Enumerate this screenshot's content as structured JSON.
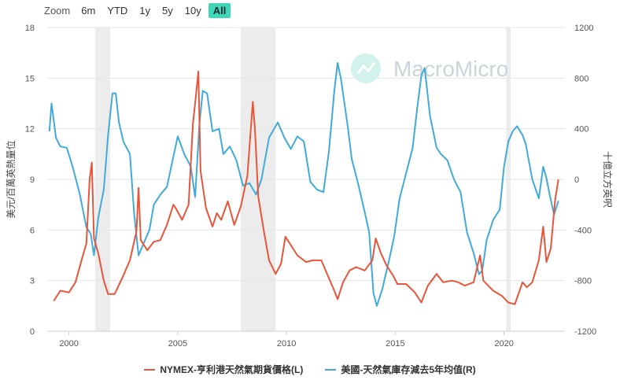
{
  "zoom": {
    "label": "Zoom",
    "buttons": [
      "6m",
      "YTD",
      "1y",
      "5y",
      "10y",
      "All"
    ],
    "active": "All"
  },
  "watermark": {
    "text": "MacroMicro",
    "icon": "macromicro-logo-icon"
  },
  "colors": {
    "red": "#e8553a",
    "blue": "#41aad9",
    "recession": "#ececec",
    "accent": "#40d6b8"
  },
  "chart_data": {
    "type": "line",
    "x_axis": {
      "ticks": [
        "2000",
        "2005",
        "2010",
        "2015",
        "2020"
      ],
      "range": [
        1999.0,
        2022.8
      ]
    },
    "y_left": {
      "label": "美元/百萬英熱量位",
      "range": [
        0,
        18
      ],
      "ticks": [
        "0",
        "3",
        "6",
        "9",
        "12",
        "15",
        "18"
      ]
    },
    "y_right": {
      "label": "十億立方英呎",
      "range": [
        -1200,
        1200
      ],
      "ticks": [
        "-1200",
        "-800",
        "-400",
        "0",
        "400",
        "800",
        "1200"
      ]
    },
    "recessions": [
      [
        2001.2,
        2001.9
      ],
      [
        2007.9,
        2009.5
      ],
      [
        2020.1,
        2020.3
      ]
    ],
    "grid": "horizontal",
    "legend_position": "bottom",
    "series": [
      {
        "name": "NYMEX-亨利港天然氣期貨價格(L)",
        "axis": "left",
        "color": "#e8553a",
        "points": [
          [
            1999.3,
            1.8
          ],
          [
            1999.6,
            2.4
          ],
          [
            2000.0,
            2.3
          ],
          [
            2000.3,
            2.9
          ],
          [
            2000.6,
            4.3
          ],
          [
            2000.8,
            5.2
          ],
          [
            2000.95,
            9.0
          ],
          [
            2001.05,
            10.0
          ],
          [
            2001.15,
            5.5
          ],
          [
            2001.35,
            4.6
          ],
          [
            2001.6,
            3.0
          ],
          [
            2001.8,
            2.2
          ],
          [
            2002.1,
            2.2
          ],
          [
            2002.5,
            3.3
          ],
          [
            2002.8,
            4.2
          ],
          [
            2003.1,
            5.9
          ],
          [
            2003.2,
            8.5
          ],
          [
            2003.3,
            5.4
          ],
          [
            2003.6,
            4.8
          ],
          [
            2003.9,
            5.3
          ],
          [
            2004.2,
            5.4
          ],
          [
            2004.5,
            6.3
          ],
          [
            2004.8,
            7.5
          ],
          [
            2004.95,
            7.2
          ],
          [
            2005.2,
            6.6
          ],
          [
            2005.5,
            7.5
          ],
          [
            2005.7,
            12.3
          ],
          [
            2005.8,
            13.5
          ],
          [
            2005.95,
            15.4
          ],
          [
            2006.05,
            9.5
          ],
          [
            2006.3,
            7.3
          ],
          [
            2006.6,
            6.2
          ],
          [
            2006.8,
            7.0
          ],
          [
            2007.0,
            6.6
          ],
          [
            2007.3,
            7.7
          ],
          [
            2007.6,
            6.3
          ],
          [
            2007.9,
            7.4
          ],
          [
            2008.2,
            9.2
          ],
          [
            2008.45,
            13.6
          ],
          [
            2008.55,
            12.0
          ],
          [
            2008.7,
            8.0
          ],
          [
            2008.95,
            6.0
          ],
          [
            2009.2,
            4.2
          ],
          [
            2009.5,
            3.4
          ],
          [
            2009.75,
            4.0
          ],
          [
            2009.95,
            5.6
          ],
          [
            2010.1,
            5.3
          ],
          [
            2010.5,
            4.5
          ],
          [
            2010.9,
            4.1
          ],
          [
            2011.2,
            4.2
          ],
          [
            2011.6,
            4.2
          ],
          [
            2011.9,
            3.3
          ],
          [
            2012.2,
            2.4
          ],
          [
            2012.35,
            1.9
          ],
          [
            2012.6,
            2.9
          ],
          [
            2012.9,
            3.6
          ],
          [
            2013.2,
            3.8
          ],
          [
            2013.6,
            3.6
          ],
          [
            2013.95,
            4.2
          ],
          [
            2014.1,
            5.5
          ],
          [
            2014.35,
            4.6
          ],
          [
            2014.6,
            3.9
          ],
          [
            2014.9,
            3.3
          ],
          [
            2015.1,
            2.8
          ],
          [
            2015.5,
            2.8
          ],
          [
            2015.9,
            2.3
          ],
          [
            2016.2,
            1.7
          ],
          [
            2016.5,
            2.7
          ],
          [
            2016.9,
            3.4
          ],
          [
            2017.2,
            2.9
          ],
          [
            2017.6,
            3.0
          ],
          [
            2017.9,
            2.9
          ],
          [
            2018.2,
            2.7
          ],
          [
            2018.6,
            2.9
          ],
          [
            2018.9,
            4.5
          ],
          [
            2019.05,
            3.0
          ],
          [
            2019.5,
            2.4
          ],
          [
            2019.9,
            2.1
          ],
          [
            2020.2,
            1.7
          ],
          [
            2020.5,
            1.6
          ],
          [
            2020.85,
            2.9
          ],
          [
            2021.05,
            2.6
          ],
          [
            2021.3,
            2.9
          ],
          [
            2021.6,
            4.2
          ],
          [
            2021.8,
            6.2
          ],
          [
            2021.95,
            4.1
          ],
          [
            2022.15,
            4.9
          ],
          [
            2022.35,
            7.8
          ],
          [
            2022.5,
            9.0
          ]
        ]
      },
      {
        "name": "美國-天然氣庫存減去5年均值(R)",
        "axis": "right",
        "color": "#41aad9",
        "points": [
          [
            1999.1,
            380
          ],
          [
            1999.2,
            600
          ],
          [
            1999.4,
            330
          ],
          [
            1999.6,
            260
          ],
          [
            1999.9,
            250
          ],
          [
            2000.2,
            80
          ],
          [
            2000.5,
            -120
          ],
          [
            2000.8,
            -380
          ],
          [
            2001.0,
            -430
          ],
          [
            2001.15,
            -600
          ],
          [
            2001.35,
            -300
          ],
          [
            2001.6,
            -80
          ],
          [
            2001.8,
            350
          ],
          [
            2002.0,
            680
          ],
          [
            2002.15,
            680
          ],
          [
            2002.3,
            450
          ],
          [
            2002.5,
            300
          ],
          [
            2002.8,
            200
          ],
          [
            2003.0,
            -280
          ],
          [
            2003.2,
            -600
          ],
          [
            2003.4,
            -520
          ],
          [
            2003.7,
            -400
          ],
          [
            2003.9,
            -200
          ],
          [
            2004.2,
            -120
          ],
          [
            2004.5,
            -60
          ],
          [
            2004.8,
            180
          ],
          [
            2005.0,
            340
          ],
          [
            2005.3,
            200
          ],
          [
            2005.6,
            100
          ],
          [
            2005.8,
            -140
          ],
          [
            2006.0,
            440
          ],
          [
            2006.15,
            700
          ],
          [
            2006.35,
            680
          ],
          [
            2006.6,
            380
          ],
          [
            2006.9,
            400
          ],
          [
            2007.1,
            200
          ],
          [
            2007.4,
            260
          ],
          [
            2007.7,
            150
          ],
          [
            2008.0,
            -50
          ],
          [
            2008.3,
            -30
          ],
          [
            2008.6,
            -120
          ],
          [
            2008.85,
            0
          ],
          [
            2009.2,
            330
          ],
          [
            2009.6,
            450
          ],
          [
            2009.9,
            330
          ],
          [
            2010.2,
            240
          ],
          [
            2010.5,
            340
          ],
          [
            2010.8,
            300
          ],
          [
            2011.1,
            -20
          ],
          [
            2011.4,
            -80
          ],
          [
            2011.7,
            -100
          ],
          [
            2011.95,
            220
          ],
          [
            2012.2,
            700
          ],
          [
            2012.35,
            920
          ],
          [
            2012.5,
            800
          ],
          [
            2012.8,
            440
          ],
          [
            2013.0,
            160
          ],
          [
            2013.3,
            -40
          ],
          [
            2013.6,
            -260
          ],
          [
            2013.8,
            -420
          ],
          [
            2014.0,
            -900
          ],
          [
            2014.15,
            -1000
          ],
          [
            2014.4,
            -870
          ],
          [
            2014.7,
            -650
          ],
          [
            2014.95,
            -450
          ],
          [
            2015.2,
            -150
          ],
          [
            2015.5,
            50
          ],
          [
            2015.8,
            250
          ],
          [
            2016.0,
            550
          ],
          [
            2016.2,
            820
          ],
          [
            2016.35,
            880
          ],
          [
            2016.6,
            500
          ],
          [
            2016.9,
            250
          ],
          [
            2017.1,
            200
          ],
          [
            2017.4,
            150
          ],
          [
            2017.7,
            0
          ],
          [
            2018.0,
            -100
          ],
          [
            2018.3,
            -420
          ],
          [
            2018.6,
            -580
          ],
          [
            2018.85,
            -750
          ],
          [
            2019.0,
            -720
          ],
          [
            2019.2,
            -480
          ],
          [
            2019.5,
            -320
          ],
          [
            2019.8,
            -240
          ],
          [
            2020.0,
            100
          ],
          [
            2020.2,
            300
          ],
          [
            2020.4,
            380
          ],
          [
            2020.6,
            420
          ],
          [
            2020.85,
            350
          ],
          [
            2021.0,
            280
          ],
          [
            2021.3,
            0
          ],
          [
            2021.6,
            -150
          ],
          [
            2021.8,
            100
          ],
          [
            2021.95,
            10
          ],
          [
            2022.1,
            -120
          ],
          [
            2022.3,
            -280
          ],
          [
            2022.5,
            -170
          ]
        ]
      }
    ]
  }
}
